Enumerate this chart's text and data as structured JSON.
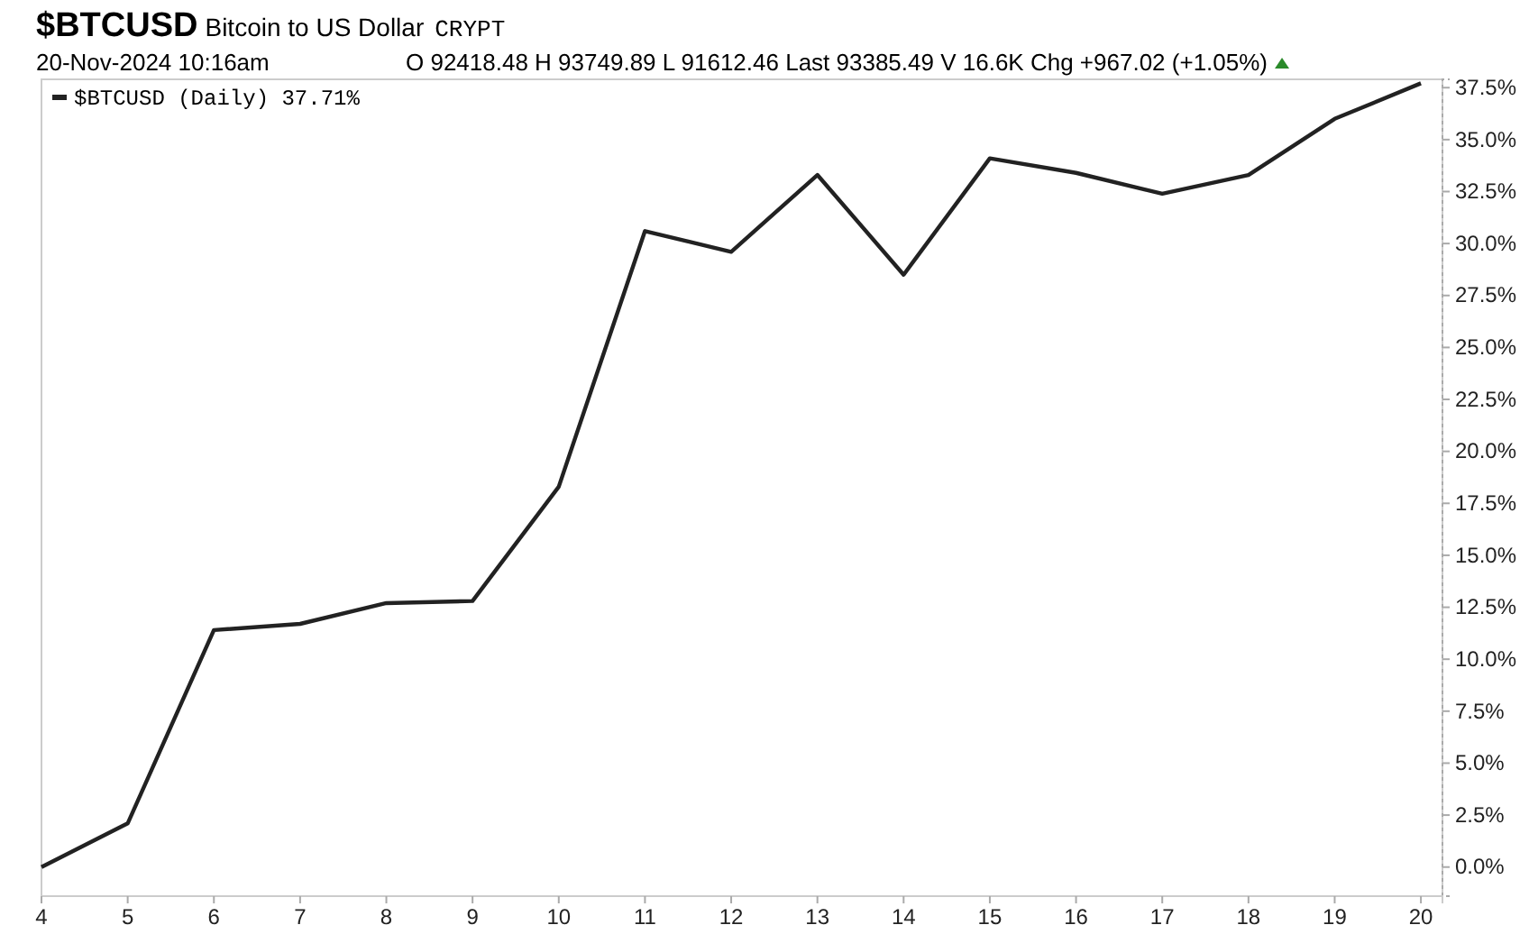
{
  "chart_data": {
    "type": "line",
    "title": "$BTCUSD",
    "subtitle": "Bitcoin to US Dollar",
    "annotations": [
      "CRYPT",
      "20-Nov-2024 10:16am",
      "O 92418.48  H 93749.89  L 91612.46  Last 93385.49  V 16.6K  Chg +967.02 (+1.05%)"
    ],
    "x": [
      4,
      5,
      6,
      7,
      8,
      9,
      10,
      11,
      12,
      13,
      14,
      15,
      16,
      17,
      18,
      19,
      20
    ],
    "series": [
      {
        "name": "$BTCUSD (Daily) 37.71%",
        "color": "#222222",
        "values": [
          0,
          2.1,
          11.4,
          11.7,
          12.7,
          12.8,
          18.3,
          30.6,
          29.6,
          33.3,
          28.5,
          34.1,
          33.4,
          32.4,
          33.3,
          36.0,
          37.71
        ]
      }
    ],
    "xlim": [
      4,
      20.25
    ],
    "xticks": [
      4,
      5,
      6,
      7,
      8,
      9,
      10,
      11,
      12,
      13,
      14,
      15,
      16,
      17,
      18,
      19,
      20
    ],
    "ylim": [
      -1.4,
      37.9
    ],
    "yticks": [
      {
        "value": 0,
        "label": "0.0%"
      },
      {
        "value": 2.5,
        "label": "2.5%"
      },
      {
        "value": 5,
        "label": "5.0%"
      },
      {
        "value": 7.5,
        "label": "7.5%"
      },
      {
        "value": 10,
        "label": "10.0%"
      },
      {
        "value": 12.5,
        "label": "12.5%"
      },
      {
        "value": 15,
        "label": "15.0%"
      },
      {
        "value": 17.5,
        "label": "17.5%"
      },
      {
        "value": 20,
        "label": "20.0%"
      },
      {
        "value": 22.5,
        "label": "22.5%"
      },
      {
        "value": 25,
        "label": "25.0%"
      },
      {
        "value": 27.5,
        "label": "27.5%"
      },
      {
        "value": 30,
        "label": "30.0%"
      },
      {
        "value": 32.5,
        "label": "32.5%"
      },
      {
        "value": 35,
        "label": "35.0%"
      },
      {
        "value": 37.5,
        "label": "37.5%"
      }
    ],
    "grid": false,
    "legend": "top left",
    "line_style": "solid",
    "marker": "none"
  }
}
